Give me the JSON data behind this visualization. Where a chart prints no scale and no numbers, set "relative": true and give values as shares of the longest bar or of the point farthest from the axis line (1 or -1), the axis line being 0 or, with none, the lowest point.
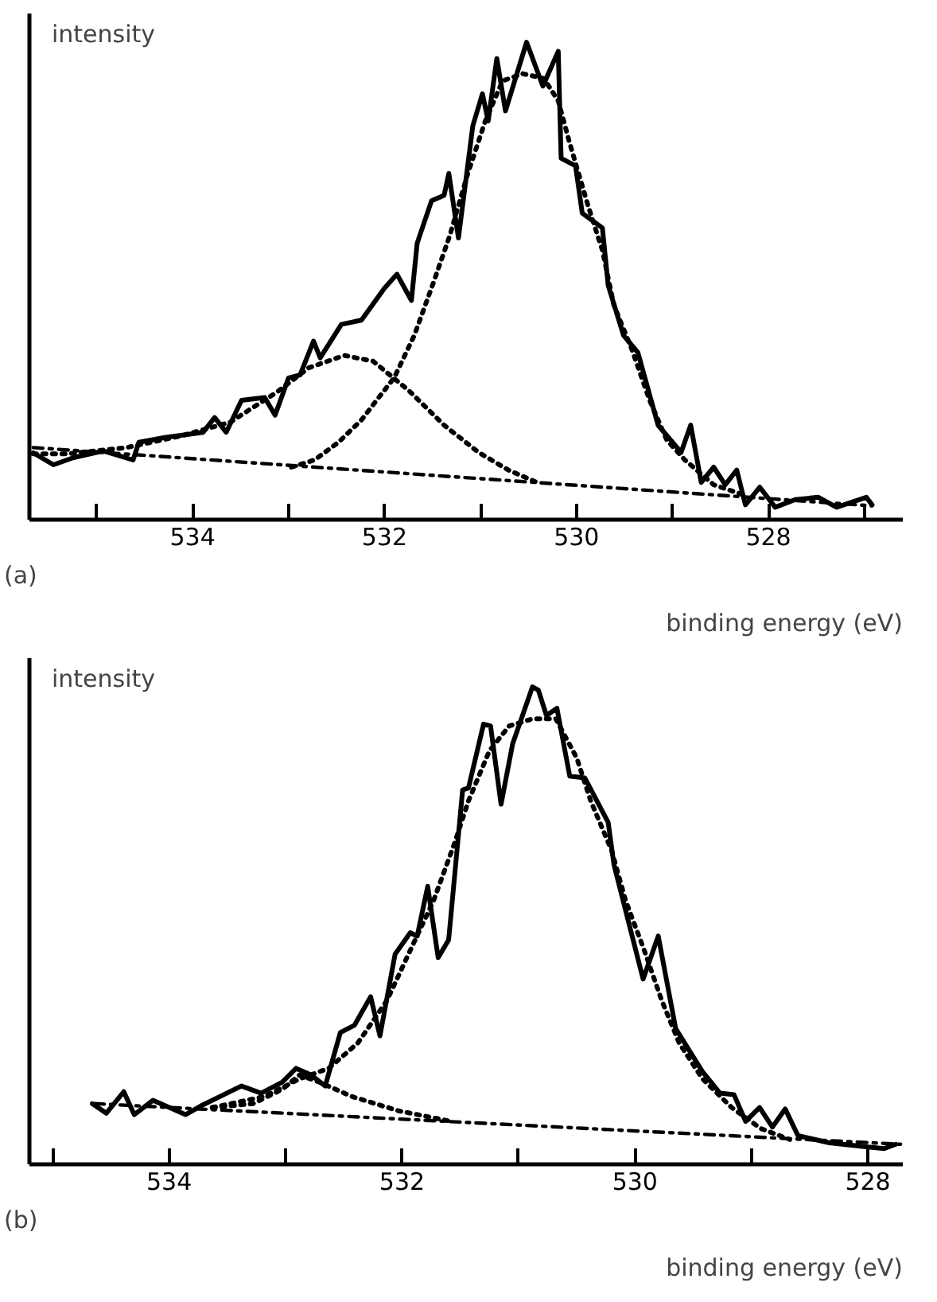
{
  "chart_data": [
    {
      "type": "line",
      "relative": true,
      "ylabel": "intensity",
      "xlabel": "binding energy (eV)",
      "annotations": [
        "(a)"
      ],
      "tick_labels": "x",
      "grid": false,
      "xlim": [
        535.7,
        526.6
      ],
      "xticks": [
        {
          "value": 535,
          "label": null
        },
        534,
        {
          "value": 533,
          "label": null
        },
        532,
        {
          "value": 531,
          "label": null
        },
        530,
        {
          "value": 529,
          "label": null
        },
        528,
        {
          "value": 527,
          "label": null
        }
      ],
      "series": [
        {
          "color": "#000000",
          "line_style": "solid",
          "x": [
            535.66,
            535.45,
            535.24,
            534.93,
            534.62,
            534.56,
            534.29,
            533.89,
            533.77,
            533.65,
            533.49,
            533.25,
            533.14,
            533.0,
            532.88,
            532.74,
            532.67,
            532.45,
            532.24,
            532.0,
            531.87,
            531.72,
            531.66,
            531.51,
            531.38,
            531.33,
            531.23,
            531.08,
            530.98,
            530.92,
            530.83,
            530.74,
            530.52,
            530.35,
            530.19,
            530.16,
            530.01,
            529.94,
            529.73,
            529.67,
            529.51,
            529.36,
            529.15,
            528.91,
            528.81,
            528.7,
            528.57,
            528.45,
            528.33,
            528.24,
            528.09,
            527.93,
            527.72,
            527.48,
            527.29,
            526.98,
            526.92
          ],
          "values": [
            0.14,
            0.115,
            0.13,
            0.144,
            0.125,
            0.162,
            0.172,
            0.183,
            0.214,
            0.183,
            0.25,
            0.256,
            0.219,
            0.297,
            0.303,
            0.374,
            0.339,
            0.409,
            0.418,
            0.485,
            0.514,
            0.459,
            0.579,
            0.668,
            0.679,
            0.725,
            0.59,
            0.825,
            0.892,
            0.835,
            0.966,
            0.856,
            1.0,
            0.908,
            0.981,
            0.757,
            0.741,
            0.642,
            0.611,
            0.491,
            0.386,
            0.35,
            0.198,
            0.141,
            0.198,
            0.078,
            0.11,
            0.073,
            0.104,
            0.031,
            0.068,
            0.026,
            0.042,
            0.047,
            0.026,
            0.047,
            0.031
          ]
        },
        {
          "color": "#000000",
          "line_style": "dotted",
          "x": [
            535.66,
            535.3,
            534.69,
            534.13,
            533.61,
            533.13,
            532.79,
            532.42,
            532.12,
            531.75,
            531.38,
            531.02,
            530.71,
            530.41
          ],
          "values": [
            0.138,
            0.138,
            0.151,
            0.175,
            0.204,
            0.266,
            0.318,
            0.344,
            0.332,
            0.271,
            0.198,
            0.141,
            0.104,
            0.078
          ]
        },
        {
          "color": "#000000",
          "line_style": "dotted",
          "x": [
            532.97,
            532.73,
            532.48,
            532.24,
            532.06,
            531.9,
            531.69,
            531.5,
            531.32,
            531.14,
            530.95,
            530.77,
            530.56,
            530.34,
            530.19,
            530.07,
            529.88,
            529.73,
            529.61,
            529.42,
            529.24,
            529.06,
            528.87,
            528.57,
            528.26
          ],
          "values": [
            0.11,
            0.125,
            0.162,
            0.209,
            0.256,
            0.297,
            0.386,
            0.491,
            0.595,
            0.72,
            0.835,
            0.919,
            0.934,
            0.924,
            0.877,
            0.788,
            0.658,
            0.564,
            0.449,
            0.355,
            0.251,
            0.167,
            0.125,
            0.073,
            0.052
          ]
        },
        {
          "color": "#000000",
          "line_style": "dashdot",
          "x": [
            535.66,
            526.92
          ],
          "values": [
            0.151,
            0.029
          ]
        }
      ]
    },
    {
      "type": "line",
      "relative": true,
      "ylabel": "intensity",
      "xlabel": "binding energy (eV)",
      "annotations": [
        "(b)"
      ],
      "tick_labels": "x",
      "grid": false,
      "xlim": [
        535.2,
        527.7
      ],
      "xticks": [
        {
          "value": 535,
          "label": null
        },
        534,
        {
          "value": 533,
          "label": null
        },
        532,
        {
          "value": 531,
          "label": null
        },
        530,
        {
          "value": 529,
          "label": null
        },
        528
      ],
      "series": [
        {
          "color": "#000000",
          "line_style": "solid",
          "x": [
            534.66,
            534.54,
            534.39,
            534.3,
            534.14,
            533.86,
            533.73,
            533.38,
            533.21,
            533.03,
            532.91,
            532.78,
            532.66,
            532.53,
            532.41,
            532.27,
            532.19,
            532.06,
            531.93,
            531.87,
            531.78,
            531.69,
            531.6,
            531.48,
            531.43,
            531.3,
            531.24,
            531.15,
            531.05,
            530.88,
            530.83,
            530.76,
            530.67,
            530.56,
            530.43,
            530.23,
            530.18,
            529.93,
            529.8,
            529.65,
            529.42,
            529.27,
            529.15,
            529.05,
            528.93,
            528.82,
            528.71,
            528.6,
            528.33,
            528.03,
            527.86,
            527.76
          ],
          "values": [
            0.127,
            0.107,
            0.152,
            0.104,
            0.134,
            0.104,
            0.122,
            0.164,
            0.149,
            0.172,
            0.201,
            0.187,
            0.164,
            0.276,
            0.291,
            0.351,
            0.269,
            0.44,
            0.485,
            0.478,
            0.582,
            0.433,
            0.47,
            0.784,
            0.788,
            0.922,
            0.918,
            0.754,
            0.881,
            1.0,
            0.993,
            0.94,
            0.955,
            0.813,
            0.809,
            0.716,
            0.627,
            0.388,
            0.478,
            0.284,
            0.194,
            0.149,
            0.146,
            0.09,
            0.119,
            0.078,
            0.116,
            0.06,
            0.045,
            0.037,
            0.033,
            0.042
          ]
        },
        {
          "color": "#000000",
          "line_style": "dotted",
          "x": [
            533.63,
            533.28,
            533.03,
            532.88,
            532.71,
            532.43,
            532.03,
            531.58
          ],
          "values": [
            0.119,
            0.127,
            0.157,
            0.187,
            0.172,
            0.142,
            0.112,
            0.09
          ]
        },
        {
          "color": "#000000",
          "line_style": "dotted",
          "x": [
            533.63,
            533.18,
            532.88,
            532.63,
            532.38,
            532.13,
            531.93,
            531.73,
            531.55,
            531.43,
            531.25,
            531.08,
            530.88,
            530.68,
            530.5,
            530.38,
            530.2,
            530.08,
            529.92,
            529.77,
            529.62,
            529.42,
            529.17,
            528.92,
            528.67
          ],
          "values": [
            0.119,
            0.142,
            0.179,
            0.201,
            0.254,
            0.343,
            0.448,
            0.552,
            0.672,
            0.761,
            0.866,
            0.918,
            0.933,
            0.933,
            0.851,
            0.761,
            0.657,
            0.552,
            0.448,
            0.343,
            0.254,
            0.179,
            0.119,
            0.075,
            0.052
          ]
        },
        {
          "color": "#000000",
          "line_style": "dashdot",
          "x": [
            534.64,
            527.72
          ],
          "values": [
            0.127,
            0.042
          ]
        }
      ]
    }
  ]
}
